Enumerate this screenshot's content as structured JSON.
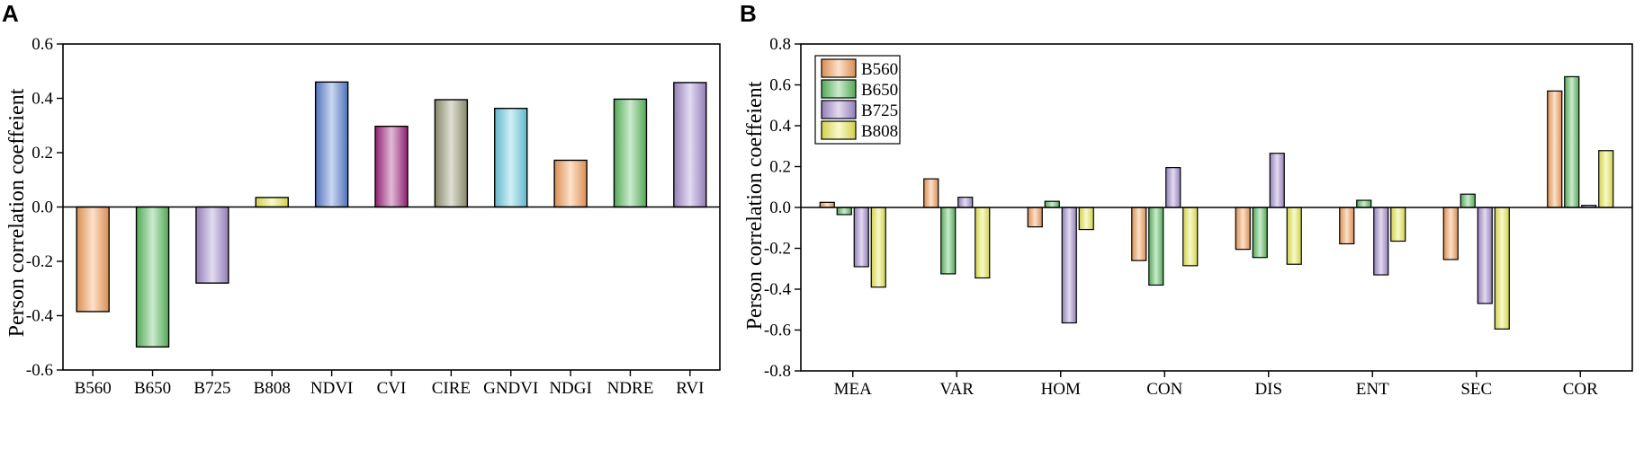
{
  "chart_data": [
    {
      "panel": "A",
      "type": "bar",
      "title": "",
      "xlabel": "",
      "ylabel": "Person correlation coeffeient",
      "ylim": [
        -0.6,
        0.6
      ],
      "yticks": [
        -0.6,
        -0.4,
        -0.2,
        0.0,
        0.2,
        0.4,
        0.6
      ],
      "ytick_labels": [
        "-0.6",
        "-0.4",
        "-0.2",
        "0.0",
        "0.2",
        "0.4",
        "0.6"
      ],
      "categories": [
        "B560",
        "B650",
        "B725",
        "B808",
        "NDVI",
        "CVI",
        "CIRE",
        "GNDVI",
        "NDGI",
        "NDRE",
        "RVI"
      ],
      "values": [
        -0.385,
        -0.515,
        -0.28,
        0.035,
        0.46,
        0.297,
        0.395,
        0.363,
        0.172,
        0.397,
        0.458
      ],
      "colors": [
        "#f7a15c",
        "#5dbf63",
        "#a68fd0",
        "#ecec58",
        "#5b82d4",
        "#a22582",
        "#9b9a7a",
        "#6fd0e6",
        "#f7a15c",
        "#5dbf63",
        "#a68fd0"
      ]
    },
    {
      "panel": "B",
      "type": "bar",
      "title": "",
      "xlabel": "",
      "ylabel": "Person correlation coeffeient",
      "ylim": [
        -0.8,
        0.8
      ],
      "yticks": [
        -0.8,
        -0.6,
        -0.4,
        -0.2,
        0.0,
        0.2,
        0.4,
        0.6,
        0.8
      ],
      "ytick_labels": [
        "-0.8",
        "-0.6",
        "-0.4",
        "-0.2",
        "0.0",
        "0.2",
        "0.4",
        "0.6",
        "0.8"
      ],
      "categories": [
        "MEA",
        "VAR",
        "HOM",
        "CON",
        "DIS",
        "ENT",
        "SEC",
        "COR"
      ],
      "series": [
        {
          "name": "B560",
          "color": "#f7a15c",
          "values": [
            0.025,
            0.14,
            -0.095,
            -0.26,
            -0.205,
            -0.178,
            -0.255,
            0.57
          ]
        },
        {
          "name": "B650",
          "color": "#5dbf63",
          "values": [
            -0.035,
            -0.325,
            0.03,
            -0.38,
            -0.245,
            0.035,
            0.065,
            0.64
          ]
        },
        {
          "name": "B725",
          "color": "#a68fd0",
          "values": [
            -0.29,
            0.05,
            -0.565,
            0.195,
            0.265,
            -0.33,
            -0.47,
            0.01
          ]
        },
        {
          "name": "B808",
          "color": "#ecec58",
          "values": [
            -0.39,
            -0.345,
            -0.108,
            -0.285,
            -0.278,
            -0.165,
            -0.595,
            0.278
          ]
        }
      ],
      "legend": "top-left"
    }
  ]
}
